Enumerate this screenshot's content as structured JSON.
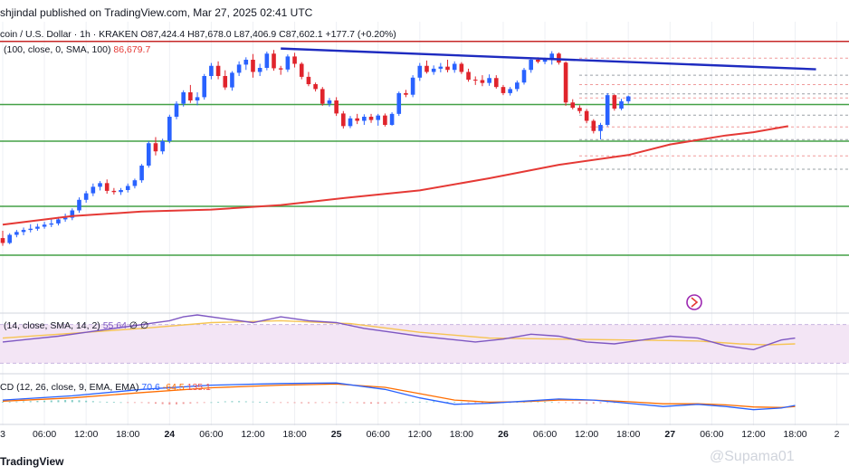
{
  "header": {
    "publish_line": "shjindal published on TradingView.com, Mar 27, 2025 02:41 UTC",
    "symbol_line": "coin / U.S. Dollar · 1h · KRAKEN  O87,424.4  H87,678.0  L87,406.9  C87,602.1  +177.7 (+0.20%)"
  },
  "indicators": {
    "ma_legend": "(100, close, 0, SMA, 100)",
    "ma_value": "86,679.7",
    "rsi_legend": "(14, close, SMA, 14, 2)",
    "rsi_value": "55.64",
    "rsi_extra": "∅  ∅",
    "macd_legend": "CD (12, 26, close, 9, EMA, EMA)",
    "macd_value1": "70.6",
    "macd_value2": "-64.5",
    "macd_value3": "135.1"
  },
  "footer": {
    "brand": "TradingView",
    "watermark": "@Supama01"
  },
  "colors": {
    "up": "#2962ff",
    "down": "#e0242c",
    "ma": "#e53935",
    "support": "#43a047",
    "resistance": "#c62828",
    "trendline": "#1e2bc0",
    "rsi": "#7e57c2",
    "rsi_ma": "#f6c453",
    "rsi_band": "#f3e5f5",
    "macd": "#2962ff",
    "signal": "#ff6d00"
  },
  "chart_data": {
    "type": "candlestick",
    "x_axis_labels": [
      {
        "label": "3",
        "day": false
      },
      {
        "label": "06:00",
        "day": false
      },
      {
        "label": "12:00",
        "day": false
      },
      {
        "label": "18:00",
        "day": false
      },
      {
        "label": "24",
        "day": true
      },
      {
        "label": "06:00",
        "day": false
      },
      {
        "label": "12:00",
        "day": false
      },
      {
        "label": "18:00",
        "day": false
      },
      {
        "label": "25",
        "day": true
      },
      {
        "label": "06:00",
        "day": false
      },
      {
        "label": "12:00",
        "day": false
      },
      {
        "label": "18:00",
        "day": false
      },
      {
        "label": "26",
        "day": true
      },
      {
        "label": "06:00",
        "day": false
      },
      {
        "label": "12:00",
        "day": false
      },
      {
        "label": "18:00",
        "day": false
      },
      {
        "label": "27",
        "day": true
      },
      {
        "label": "06:00",
        "day": false
      },
      {
        "label": "12:00",
        "day": false
      },
      {
        "label": "18:00",
        "day": false
      },
      {
        "label": "2",
        "day": false
      }
    ],
    "x_axis_label_hours": [
      0,
      6,
      12,
      18,
      24,
      30,
      36,
      42,
      48,
      54,
      60,
      66,
      72,
      78,
      84,
      90,
      96,
      102,
      108,
      114,
      120
    ],
    "price_range": [
      82300,
      89300
    ],
    "horizontal_lines": [
      {
        "price": 88950,
        "kind": "resistance"
      },
      {
        "price": 87400,
        "kind": "support"
      },
      {
        "price": 86500,
        "kind": "support"
      },
      {
        "price": 84900,
        "kind": "support"
      },
      {
        "price": 83700,
        "kind": "support"
      }
    ],
    "trendline": [
      [
        40,
        88775
      ],
      [
        117,
        88266
      ]
    ],
    "dashed_levels": [
      88540,
      88120,
      87890,
      87660,
      87560,
      87140,
      86850,
      86540,
      86140,
      85810
    ],
    "candles": [
      {
        "o": 84120,
        "h": 84300,
        "l": 83930,
        "c": 84000
      },
      {
        "o": 84000,
        "h": 84240,
        "l": 83970,
        "c": 84200
      },
      {
        "o": 84200,
        "h": 84320,
        "l": 84140,
        "c": 84270
      },
      {
        "o": 84270,
        "h": 84380,
        "l": 84190,
        "c": 84320
      },
      {
        "o": 84320,
        "h": 84460,
        "l": 84260,
        "c": 84350
      },
      {
        "o": 84350,
        "h": 84470,
        "l": 84300,
        "c": 84400
      },
      {
        "o": 84400,
        "h": 84520,
        "l": 84350,
        "c": 84450
      },
      {
        "o": 84450,
        "h": 84580,
        "l": 84390,
        "c": 84480
      },
      {
        "o": 84480,
        "h": 84640,
        "l": 84430,
        "c": 84580
      },
      {
        "o": 84580,
        "h": 84720,
        "l": 84520,
        "c": 84620
      },
      {
        "o": 84620,
        "h": 84850,
        "l": 84560,
        "c": 84800
      },
      {
        "o": 84800,
        "h": 85120,
        "l": 84740,
        "c": 85060
      },
      {
        "o": 85060,
        "h": 85280,
        "l": 84990,
        "c": 85220
      },
      {
        "o": 85220,
        "h": 85460,
        "l": 85150,
        "c": 85380
      },
      {
        "o": 85380,
        "h": 85520,
        "l": 85290,
        "c": 85470
      },
      {
        "o": 85470,
        "h": 85560,
        "l": 85210,
        "c": 85280
      },
      {
        "o": 85280,
        "h": 85350,
        "l": 85190,
        "c": 85250
      },
      {
        "o": 85250,
        "h": 85350,
        "l": 85180,
        "c": 85300
      },
      {
        "o": 85300,
        "h": 85460,
        "l": 85240,
        "c": 85400
      },
      {
        "o": 85400,
        "h": 85580,
        "l": 85340,
        "c": 85540
      },
      {
        "o": 85540,
        "h": 85940,
        "l": 85480,
        "c": 85900
      },
      {
        "o": 85900,
        "h": 86500,
        "l": 85850,
        "c": 86450
      },
      {
        "o": 86450,
        "h": 86600,
        "l": 86150,
        "c": 86250
      },
      {
        "o": 86250,
        "h": 86560,
        "l": 86180,
        "c": 86500
      },
      {
        "o": 86500,
        "h": 87150,
        "l": 86450,
        "c": 87100
      },
      {
        "o": 87100,
        "h": 87480,
        "l": 87040,
        "c": 87420
      },
      {
        "o": 87420,
        "h": 87750,
        "l": 87350,
        "c": 87700
      },
      {
        "o": 87700,
        "h": 87880,
        "l": 87440,
        "c": 87500
      },
      {
        "o": 87500,
        "h": 87700,
        "l": 87380,
        "c": 87580
      },
      {
        "o": 87580,
        "h": 88150,
        "l": 87520,
        "c": 88100
      },
      {
        "o": 88100,
        "h": 88420,
        "l": 88020,
        "c": 88350
      },
      {
        "o": 88350,
        "h": 88460,
        "l": 88020,
        "c": 88100
      },
      {
        "o": 88100,
        "h": 88240,
        "l": 87760,
        "c": 87820
      },
      {
        "o": 87820,
        "h": 88220,
        "l": 87740,
        "c": 88180
      },
      {
        "o": 88180,
        "h": 88460,
        "l": 88100,
        "c": 88380
      },
      {
        "o": 88380,
        "h": 88560,
        "l": 88250,
        "c": 88500
      },
      {
        "o": 88500,
        "h": 88640,
        "l": 88060,
        "c": 88200
      },
      {
        "o": 88200,
        "h": 88400,
        "l": 88100,
        "c": 88300
      },
      {
        "o": 88300,
        "h": 88700,
        "l": 88240,
        "c": 88650
      },
      {
        "o": 88650,
        "h": 88740,
        "l": 88230,
        "c": 88290
      },
      {
        "o": 88290,
        "h": 88350,
        "l": 88130,
        "c": 88260
      },
      {
        "o": 88260,
        "h": 88630,
        "l": 88200,
        "c": 88580
      },
      {
        "o": 88580,
        "h": 88670,
        "l": 88310,
        "c": 88400
      },
      {
        "o": 88400,
        "h": 88440,
        "l": 88020,
        "c": 88080
      },
      {
        "o": 88080,
        "h": 88200,
        "l": 87850,
        "c": 87900
      },
      {
        "o": 87900,
        "h": 87940,
        "l": 87720,
        "c": 87780
      },
      {
        "o": 87780,
        "h": 87830,
        "l": 87370,
        "c": 87420
      },
      {
        "o": 87420,
        "h": 87560,
        "l": 87350,
        "c": 87500
      },
      {
        "o": 87500,
        "h": 87580,
        "l": 87120,
        "c": 87180
      },
      {
        "o": 87180,
        "h": 87240,
        "l": 86810,
        "c": 86870
      },
      {
        "o": 86870,
        "h": 87120,
        "l": 86820,
        "c": 87060
      },
      {
        "o": 87060,
        "h": 87170,
        "l": 86920,
        "c": 87000
      },
      {
        "o": 87000,
        "h": 87160,
        "l": 86900,
        "c": 87100
      },
      {
        "o": 87100,
        "h": 87170,
        "l": 86950,
        "c": 87020
      },
      {
        "o": 87020,
        "h": 87170,
        "l": 86880,
        "c": 87130
      },
      {
        "o": 87130,
        "h": 87180,
        "l": 86860,
        "c": 86900
      },
      {
        "o": 86900,
        "h": 87210,
        "l": 86880,
        "c": 87170
      },
      {
        "o": 87170,
        "h": 87720,
        "l": 87120,
        "c": 87680
      },
      {
        "o": 87680,
        "h": 87760,
        "l": 87580,
        "c": 87640
      },
      {
        "o": 87640,
        "h": 88120,
        "l": 87580,
        "c": 88060
      },
      {
        "o": 88060,
        "h": 88420,
        "l": 87980,
        "c": 88350
      },
      {
        "o": 88350,
        "h": 88480,
        "l": 88160,
        "c": 88200
      },
      {
        "o": 88200,
        "h": 88360,
        "l": 88130,
        "c": 88280
      },
      {
        "o": 88280,
        "h": 88420,
        "l": 88190,
        "c": 88330
      },
      {
        "o": 88330,
        "h": 88500,
        "l": 88190,
        "c": 88250
      },
      {
        "o": 88250,
        "h": 88460,
        "l": 88180,
        "c": 88400
      },
      {
        "o": 88400,
        "h": 88440,
        "l": 88150,
        "c": 88200
      },
      {
        "o": 88200,
        "h": 88280,
        "l": 87960,
        "c": 88010
      },
      {
        "o": 88010,
        "h": 88090,
        "l": 87880,
        "c": 88000
      },
      {
        "o": 88000,
        "h": 88120,
        "l": 87850,
        "c": 87930
      },
      {
        "o": 87930,
        "h": 88140,
        "l": 87860,
        "c": 88050
      },
      {
        "o": 88050,
        "h": 88120,
        "l": 87790,
        "c": 87830
      },
      {
        "o": 87830,
        "h": 87880,
        "l": 87630,
        "c": 87680
      },
      {
        "o": 87680,
        "h": 87830,
        "l": 87620,
        "c": 87780
      },
      {
        "o": 87780,
        "h": 87990,
        "l": 87720,
        "c": 87940
      },
      {
        "o": 87940,
        "h": 88300,
        "l": 87890,
        "c": 88250
      },
      {
        "o": 88250,
        "h": 88550,
        "l": 88180,
        "c": 88500
      },
      {
        "o": 88500,
        "h": 88560,
        "l": 88410,
        "c": 88450
      },
      {
        "o": 88450,
        "h": 88550,
        "l": 88390,
        "c": 88520
      },
      {
        "o": 88520,
        "h": 88710,
        "l": 88380,
        "c": 88650
      },
      {
        "o": 88650,
        "h": 88680,
        "l": 88380,
        "c": 88430
      },
      {
        "o": 88430,
        "h": 88460,
        "l": 87370,
        "c": 87450
      },
      {
        "o": 87450,
        "h": 87530,
        "l": 87280,
        "c": 87320
      },
      {
        "o": 87320,
        "h": 87380,
        "l": 87180,
        "c": 87240
      },
      {
        "o": 87240,
        "h": 87290,
        "l": 86940,
        "c": 87000
      },
      {
        "o": 87000,
        "h": 87040,
        "l": 86690,
        "c": 86750
      },
      {
        "o": 86750,
        "h": 86950,
        "l": 86540,
        "c": 86900
      },
      {
        "o": 86900,
        "h": 87680,
        "l": 86860,
        "c": 87630
      },
      {
        "o": 87630,
        "h": 87650,
        "l": 87250,
        "c": 87300
      },
      {
        "o": 87300,
        "h": 87540,
        "l": 87260,
        "c": 87480
      },
      {
        "o": 87480,
        "h": 87620,
        "l": 87420,
        "c": 87600
      }
    ],
    "sma100": {
      "name": "MA (100, close, 0, SMA, 100)",
      "points": [
        [
          0,
          84450
        ],
        [
          10,
          84660
        ],
        [
          20,
          84770
        ],
        [
          30,
          84820
        ],
        [
          40,
          84930
        ],
        [
          50,
          85120
        ],
        [
          60,
          85290
        ],
        [
          70,
          85590
        ],
        [
          80,
          85920
        ],
        [
          90,
          86160
        ],
        [
          96,
          86420
        ],
        [
          104,
          86640
        ],
        [
          108,
          86720
        ],
        [
          113,
          86870
        ]
      ]
    },
    "rsi": {
      "range": [
        20,
        80
      ],
      "band": [
        30,
        70
      ],
      "rsi_points": [
        [
          0,
          52
        ],
        [
          4,
          55
        ],
        [
          8,
          58
        ],
        [
          12,
          62
        ],
        [
          16,
          66
        ],
        [
          20,
          70
        ],
        [
          24,
          74
        ],
        [
          26,
          78
        ],
        [
          28,
          80
        ],
        [
          32,
          76
        ],
        [
          36,
          72
        ],
        [
          40,
          78
        ],
        [
          44,
          74
        ],
        [
          48,
          72
        ],
        [
          52,
          66
        ],
        [
          56,
          62
        ],
        [
          60,
          58
        ],
        [
          64,
          55
        ],
        [
          68,
          52
        ],
        [
          72,
          55
        ],
        [
          76,
          60
        ],
        [
          80,
          58
        ],
        [
          84,
          52
        ],
        [
          88,
          50
        ],
        [
          92,
          54
        ],
        [
          96,
          58
        ],
        [
          100,
          56
        ],
        [
          104,
          48
        ],
        [
          108,
          44
        ],
        [
          112,
          54
        ],
        [
          114,
          56
        ]
      ],
      "ma_points": [
        [
          0,
          56
        ],
        [
          10,
          61
        ],
        [
          20,
          66
        ],
        [
          30,
          72
        ],
        [
          40,
          74
        ],
        [
          50,
          71
        ],
        [
          60,
          62
        ],
        [
          70,
          56
        ],
        [
          80,
          55
        ],
        [
          90,
          54
        ],
        [
          100,
          53
        ],
        [
          106,
          50
        ],
        [
          110,
          49
        ],
        [
          114,
          50
        ]
      ]
    },
    "macd": {
      "range": [
        -200,
        250
      ],
      "macd_points": [
        [
          0,
          20
        ],
        [
          10,
          60
        ],
        [
          20,
          120
        ],
        [
          30,
          160
        ],
        [
          40,
          175
        ],
        [
          48,
          180
        ],
        [
          55,
          120
        ],
        [
          60,
          40
        ],
        [
          65,
          -20
        ],
        [
          70,
          -10
        ],
        [
          75,
          10
        ],
        [
          80,
          30
        ],
        [
          85,
          20
        ],
        [
          90,
          -10
        ],
        [
          95,
          -40
        ],
        [
          100,
          -20
        ],
        [
          104,
          -40
        ],
        [
          108,
          -70
        ],
        [
          112,
          -55
        ],
        [
          114,
          -30
        ]
      ],
      "signal_points": [
        [
          0,
          10
        ],
        [
          10,
          40
        ],
        [
          20,
          90
        ],
        [
          30,
          135
        ],
        [
          40,
          160
        ],
        [
          48,
          170
        ],
        [
          55,
          140
        ],
        [
          60,
          80
        ],
        [
          65,
          20
        ],
        [
          70,
          0
        ],
        [
          75,
          5
        ],
        [
          80,
          20
        ],
        [
          85,
          20
        ],
        [
          90,
          5
        ],
        [
          95,
          -15
        ],
        [
          100,
          -15
        ],
        [
          104,
          -25
        ],
        [
          108,
          -45
        ],
        [
          112,
          -50
        ],
        [
          114,
          -40
        ]
      ],
      "histogram": [
        2,
        4,
        6,
        8,
        10,
        12,
        14,
        16,
        18,
        20,
        20,
        18,
        14,
        10,
        6,
        4,
        2,
        0,
        -2,
        -4,
        -6,
        -10,
        -14,
        -18,
        -22,
        -20,
        -16,
        -12,
        -8,
        -4,
        0,
        4,
        8,
        10,
        10,
        8,
        6,
        4,
        2,
        -2,
        -4,
        -6,
        -8,
        -10,
        -10,
        -8,
        -6,
        -4,
        -2,
        0,
        -4,
        -8,
        -12,
        -14,
        -14,
        -12,
        -8,
        -4,
        0,
        2,
        4,
        6,
        8,
        6,
        4,
        2,
        0,
        -2,
        -4,
        -6,
        -8,
        -6,
        -4,
        -2,
        2,
        4,
        6,
        6,
        4,
        2,
        -2,
        -6,
        -10,
        -14,
        -16,
        -14,
        -10,
        -6,
        -2,
        2,
        6
      ]
    }
  }
}
